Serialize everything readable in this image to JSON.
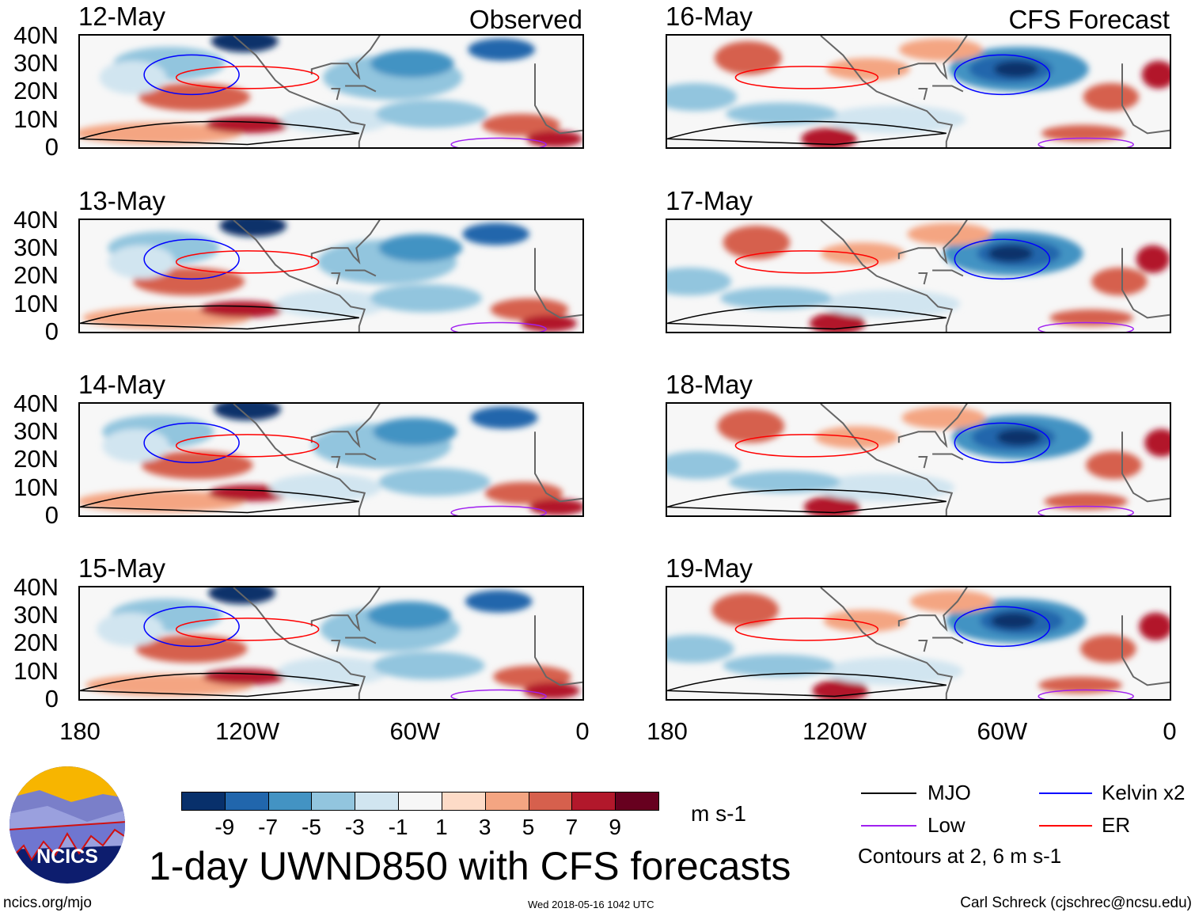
{
  "panels": [
    {
      "date": "12-May",
      "tag": "Observed",
      "kind": "obs"
    },
    {
      "date": "13-May",
      "tag": "",
      "kind": "obs"
    },
    {
      "date": "14-May",
      "tag": "",
      "kind": "obs"
    },
    {
      "date": "15-May",
      "tag": "",
      "kind": "obs"
    },
    {
      "date": "16-May",
      "tag": "CFS Forecast",
      "kind": "fc"
    },
    {
      "date": "17-May",
      "tag": "",
      "kind": "fc"
    },
    {
      "date": "18-May",
      "tag": "",
      "kind": "fc"
    },
    {
      "date": "19-May",
      "tag": "",
      "kind": "fc"
    }
  ],
  "lat_labels": [
    "40N",
    "30N",
    "20N",
    "10N",
    "0"
  ],
  "lon_labels": [
    "180",
    "120W",
    "60W",
    "0"
  ],
  "colorbar": {
    "colors": [
      "#08306b",
      "#2166ac",
      "#4393c3",
      "#92c5de",
      "#d1e5f0",
      "#f7f7f7",
      "#fddbc7",
      "#f4a582",
      "#d6604d",
      "#b2182b",
      "#67001f"
    ],
    "labels": [
      "-9",
      "-7",
      "-5",
      "-3",
      "-1",
      "1",
      "3",
      "5",
      "7",
      "9"
    ],
    "units": "m s-1"
  },
  "legend": {
    "items": [
      {
        "label": "MJO",
        "color": "#000000"
      },
      {
        "label": "Kelvin x2",
        "color": "#0000ff"
      },
      {
        "label": "Low",
        "color": "#a020f0"
      },
      {
        "label": "ER",
        "color": "#ff0000"
      }
    ],
    "note": "Contours at 2, 6 m s-1"
  },
  "title": "1-day UWND850 with CFS forecasts",
  "logo_text": "NCICS",
  "footer": {
    "left": "ncics.org/mjo",
    "center": "Wed 2018-05-16 1042 UTC",
    "right": "Carl Schreck (cjschrec@ncsu.edu)"
  }
}
